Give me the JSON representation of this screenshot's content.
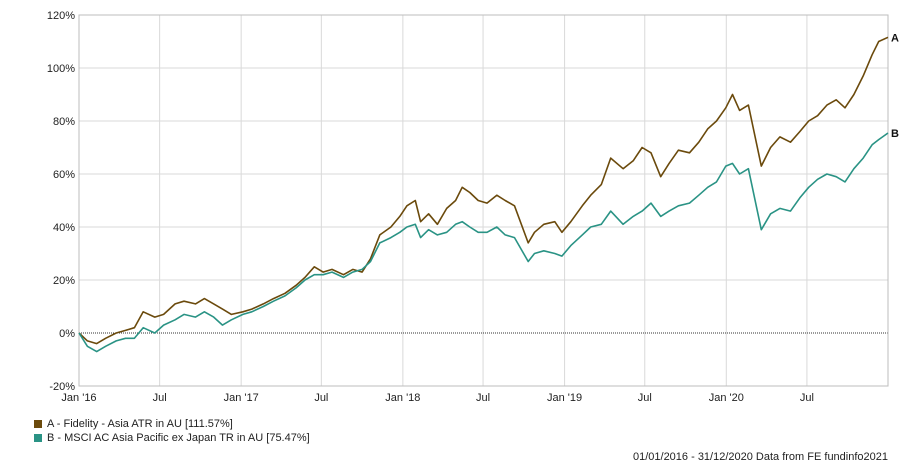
{
  "chart_data": {
    "type": "line",
    "x_ticks": [
      "Jan '16",
      "Jul",
      "Jan '17",
      "Jul",
      "Jan '18",
      "Jul",
      "Jan '19",
      "Jul",
      "Jan '20",
      "Jul"
    ],
    "x_tick_dates": [
      "2016-01-01",
      "2016-07-01",
      "2017-01-01",
      "2017-07-01",
      "2018-01-01",
      "2018-07-01",
      "2019-01-01",
      "2019-07-01",
      "2020-01-01",
      "2020-07-01"
    ],
    "xlim": [
      "2016-01-01",
      "2020-12-31"
    ],
    "y_ticks": [
      "-20%",
      "0%",
      "20%",
      "40%",
      "60%",
      "80%",
      "100%",
      "120%"
    ],
    "ylim": [
      -20,
      120
    ],
    "y_unit": "%",
    "grid": true,
    "zero_line": true,
    "legend_position": "bottom-left",
    "series": [
      {
        "name": "A - Fidelity - Asia ATR in AU [111.57%]",
        "end_label": "A",
        "color": "#6B4A0C",
        "points": [
          [
            "2016-01-01",
            0
          ],
          [
            "2016-01-20",
            -3
          ],
          [
            "2016-02-10",
            -4
          ],
          [
            "2016-03-01",
            -2
          ],
          [
            "2016-03-25",
            0
          ],
          [
            "2016-04-15",
            1
          ],
          [
            "2016-05-05",
            2
          ],
          [
            "2016-05-25",
            8
          ],
          [
            "2016-06-20",
            6
          ],
          [
            "2016-07-10",
            7
          ],
          [
            "2016-08-05",
            11
          ],
          [
            "2016-08-25",
            12
          ],
          [
            "2016-09-20",
            11
          ],
          [
            "2016-10-10",
            13
          ],
          [
            "2016-10-31",
            11
          ],
          [
            "2016-11-20",
            9
          ],
          [
            "2016-12-10",
            7
          ],
          [
            "2017-01-05",
            8
          ],
          [
            "2017-01-25",
            9
          ],
          [
            "2017-02-20",
            11
          ],
          [
            "2017-03-15",
            13
          ],
          [
            "2017-04-10",
            15
          ],
          [
            "2017-05-05",
            18
          ],
          [
            "2017-05-25",
            21
          ],
          [
            "2017-06-15",
            25
          ],
          [
            "2017-07-05",
            23
          ],
          [
            "2017-07-25",
            24
          ],
          [
            "2017-08-20",
            22
          ],
          [
            "2017-09-10",
            24
          ],
          [
            "2017-10-01",
            23
          ],
          [
            "2017-10-20",
            28
          ],
          [
            "2017-11-10",
            37
          ],
          [
            "2017-12-05",
            40
          ],
          [
            "2017-12-25",
            44
          ],
          [
            "2018-01-10",
            48
          ],
          [
            "2018-01-29",
            50
          ],
          [
            "2018-02-10",
            42
          ],
          [
            "2018-02-28",
            45
          ],
          [
            "2018-03-20",
            41
          ],
          [
            "2018-04-10",
            47
          ],
          [
            "2018-04-30",
            50
          ],
          [
            "2018-05-15",
            55
          ],
          [
            "2018-06-01",
            53
          ],
          [
            "2018-06-20",
            50
          ],
          [
            "2018-07-10",
            49
          ],
          [
            "2018-08-01",
            52
          ],
          [
            "2018-08-20",
            50
          ],
          [
            "2018-09-10",
            48
          ],
          [
            "2018-10-11",
            34
          ],
          [
            "2018-10-25",
            38
          ],
          [
            "2018-11-15",
            41
          ],
          [
            "2018-12-10",
            42
          ],
          [
            "2018-12-26",
            38
          ],
          [
            "2019-01-15",
            42
          ],
          [
            "2019-02-10",
            48
          ],
          [
            "2019-03-01",
            52
          ],
          [
            "2019-03-25",
            56
          ],
          [
            "2019-04-15",
            66
          ],
          [
            "2019-05-13",
            62
          ],
          [
            "2019-06-05",
            65
          ],
          [
            "2019-06-25",
            70
          ],
          [
            "2019-07-15",
            68
          ],
          [
            "2019-08-06",
            59
          ],
          [
            "2019-08-25",
            64
          ],
          [
            "2019-09-15",
            69
          ],
          [
            "2019-10-10",
            68
          ],
          [
            "2019-10-31",
            72
          ],
          [
            "2019-11-20",
            77
          ],
          [
            "2019-12-10",
            80
          ],
          [
            "2019-12-31",
            85
          ],
          [
            "2020-01-15",
            90
          ],
          [
            "2020-01-31",
            84
          ],
          [
            "2020-02-20",
            86
          ],
          [
            "2020-03-20",
            63
          ],
          [
            "2020-04-10",
            70
          ],
          [
            "2020-05-01",
            74
          ],
          [
            "2020-05-25",
            72
          ],
          [
            "2020-06-15",
            76
          ],
          [
            "2020-07-05",
            80
          ],
          [
            "2020-07-25",
            82
          ],
          [
            "2020-08-15",
            86
          ],
          [
            "2020-09-05",
            88
          ],
          [
            "2020-09-25",
            85
          ],
          [
            "2020-10-15",
            90
          ],
          [
            "2020-11-05",
            97
          ],
          [
            "2020-11-25",
            105
          ],
          [
            "2020-12-10",
            110
          ],
          [
            "2020-12-31",
            111.57
          ]
        ]
      },
      {
        "name": "B - MSCI AC Asia Pacific ex Japan TR in AU [75.47%]",
        "end_label": "B",
        "color": "#2A9385",
        "points": [
          [
            "2016-01-01",
            0
          ],
          [
            "2016-01-20",
            -5
          ],
          [
            "2016-02-10",
            -7
          ],
          [
            "2016-03-01",
            -5
          ],
          [
            "2016-03-25",
            -3
          ],
          [
            "2016-04-15",
            -2
          ],
          [
            "2016-05-05",
            -2
          ],
          [
            "2016-05-25",
            2
          ],
          [
            "2016-06-20",
            0
          ],
          [
            "2016-07-10",
            3
          ],
          [
            "2016-08-05",
            5
          ],
          [
            "2016-08-25",
            7
          ],
          [
            "2016-09-20",
            6
          ],
          [
            "2016-10-10",
            8
          ],
          [
            "2016-10-31",
            6
          ],
          [
            "2016-11-20",
            3
          ],
          [
            "2016-12-10",
            5
          ],
          [
            "2017-01-05",
            7
          ],
          [
            "2017-01-25",
            8
          ],
          [
            "2017-02-20",
            10
          ],
          [
            "2017-03-15",
            12
          ],
          [
            "2017-04-10",
            14
          ],
          [
            "2017-05-05",
            17
          ],
          [
            "2017-05-25",
            20
          ],
          [
            "2017-06-15",
            22
          ],
          [
            "2017-07-05",
            22
          ],
          [
            "2017-07-25",
            23
          ],
          [
            "2017-08-20",
            21
          ],
          [
            "2017-09-10",
            23
          ],
          [
            "2017-10-01",
            24
          ],
          [
            "2017-10-20",
            27
          ],
          [
            "2017-11-10",
            34
          ],
          [
            "2017-12-05",
            36
          ],
          [
            "2017-12-25",
            38
          ],
          [
            "2018-01-10",
            40
          ],
          [
            "2018-01-29",
            41
          ],
          [
            "2018-02-10",
            36
          ],
          [
            "2018-02-28",
            39
          ],
          [
            "2018-03-20",
            37
          ],
          [
            "2018-04-10",
            38
          ],
          [
            "2018-04-30",
            41
          ],
          [
            "2018-05-15",
            42
          ],
          [
            "2018-06-01",
            40
          ],
          [
            "2018-06-20",
            38
          ],
          [
            "2018-07-10",
            38
          ],
          [
            "2018-08-01",
            40
          ],
          [
            "2018-08-20",
            37
          ],
          [
            "2018-09-10",
            36
          ],
          [
            "2018-10-11",
            27
          ],
          [
            "2018-10-25",
            30
          ],
          [
            "2018-11-15",
            31
          ],
          [
            "2018-12-10",
            30
          ],
          [
            "2018-12-26",
            29
          ],
          [
            "2019-01-15",
            33
          ],
          [
            "2019-02-10",
            37
          ],
          [
            "2019-03-01",
            40
          ],
          [
            "2019-03-25",
            41
          ],
          [
            "2019-04-15",
            46
          ],
          [
            "2019-05-13",
            41
          ],
          [
            "2019-06-05",
            44
          ],
          [
            "2019-06-25",
            46
          ],
          [
            "2019-07-15",
            49
          ],
          [
            "2019-08-06",
            44
          ],
          [
            "2019-08-25",
            46
          ],
          [
            "2019-09-15",
            48
          ],
          [
            "2019-10-10",
            49
          ],
          [
            "2019-10-31",
            52
          ],
          [
            "2019-11-20",
            55
          ],
          [
            "2019-12-10",
            57
          ],
          [
            "2019-12-31",
            63
          ],
          [
            "2020-01-15",
            64
          ],
          [
            "2020-01-31",
            60
          ],
          [
            "2020-02-20",
            62
          ],
          [
            "2020-03-20",
            39
          ],
          [
            "2020-04-10",
            45
          ],
          [
            "2020-05-01",
            47
          ],
          [
            "2020-05-25",
            46
          ],
          [
            "2020-06-15",
            51
          ],
          [
            "2020-07-05",
            55
          ],
          [
            "2020-07-25",
            58
          ],
          [
            "2020-08-15",
            60
          ],
          [
            "2020-09-05",
            59
          ],
          [
            "2020-09-25",
            57
          ],
          [
            "2020-10-15",
            62
          ],
          [
            "2020-11-05",
            66
          ],
          [
            "2020-11-25",
            71
          ],
          [
            "2020-12-10",
            73
          ],
          [
            "2020-12-31",
            75.47
          ]
        ]
      }
    ]
  },
  "footer": {
    "text": "01/01/2016 - 31/12/2020 Data from FE fundinfo2021"
  }
}
